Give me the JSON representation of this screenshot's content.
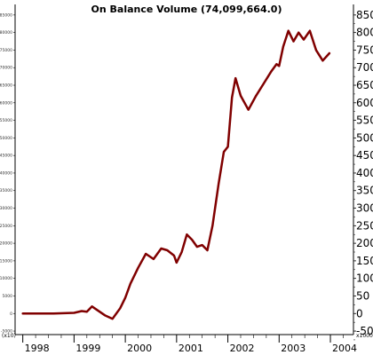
{
  "chart_data": {
    "type": "line",
    "title": "On Balance Volume (74,099,664.0)",
    "x_tick_labels": [
      "1998",
      "1999",
      "2000",
      "2001",
      "2002",
      "2003",
      "2004"
    ],
    "y_tick_labels_left": [
      "85000",
      "80000",
      "75000",
      "70000",
      "65000",
      "60000",
      "55000",
      "50000",
      "45000",
      "40000",
      "35000",
      "30000",
      "25000",
      "20000",
      "15000",
      "10000",
      "5000",
      "0",
      "-5000"
    ],
    "y_tick_labels_right": [
      "850",
      "800",
      "750",
      "700",
      "650",
      "600",
      "550",
      "500",
      "450",
      "400",
      "350",
      "300",
      "250",
      "200",
      "150",
      "100",
      "50",
      "0",
      "-50"
    ],
    "y_unit_label": "x10000",
    "bottom_left_label": "(x10)",
    "ylim": [
      -6000,
      88000
    ],
    "xlim": [
      1997.85,
      2004.45
    ],
    "grid": false,
    "line_color": "#800000",
    "series": [
      {
        "x": [
          1998.0,
          1998.4,
          1998.6,
          1998.8,
          1999.0,
          1999.15,
          1999.25,
          1999.35,
          1999.45,
          1999.6,
          1999.75,
          1999.9,
          2000.0,
          2000.1,
          2000.25,
          2000.4,
          2000.55,
          2000.7,
          2000.82,
          2000.95,
          2001.0,
          2001.1,
          2001.2,
          2001.3,
          2001.4,
          2001.5,
          2001.6,
          2001.7,
          2001.82,
          2001.92,
          2002.0,
          2002.08,
          2002.15,
          2002.25,
          2002.4,
          2002.55,
          2002.7,
          2002.85,
          2002.95,
          2003.0,
          2003.08,
          2003.18,
          2003.28,
          2003.38,
          2003.48,
          2003.6,
          2003.72,
          2003.85,
          2003.98
        ],
        "y": [
          0,
          0,
          0,
          100,
          200,
          700,
          500,
          2000,
          1000,
          -500,
          -1500,
          1500,
          4500,
          8500,
          13000,
          17000,
          15500,
          18500,
          18000,
          16500,
          14500,
          17500,
          22500,
          21000,
          19000,
          19500,
          18000,
          25000,
          37000,
          46000,
          47500,
          61500,
          67000,
          62000,
          58000,
          62000,
          65500,
          69000,
          71000,
          70500,
          76000,
          80500,
          77500,
          80000,
          78000,
          80500,
          75000,
          72000,
          74100
        ]
      }
    ]
  }
}
